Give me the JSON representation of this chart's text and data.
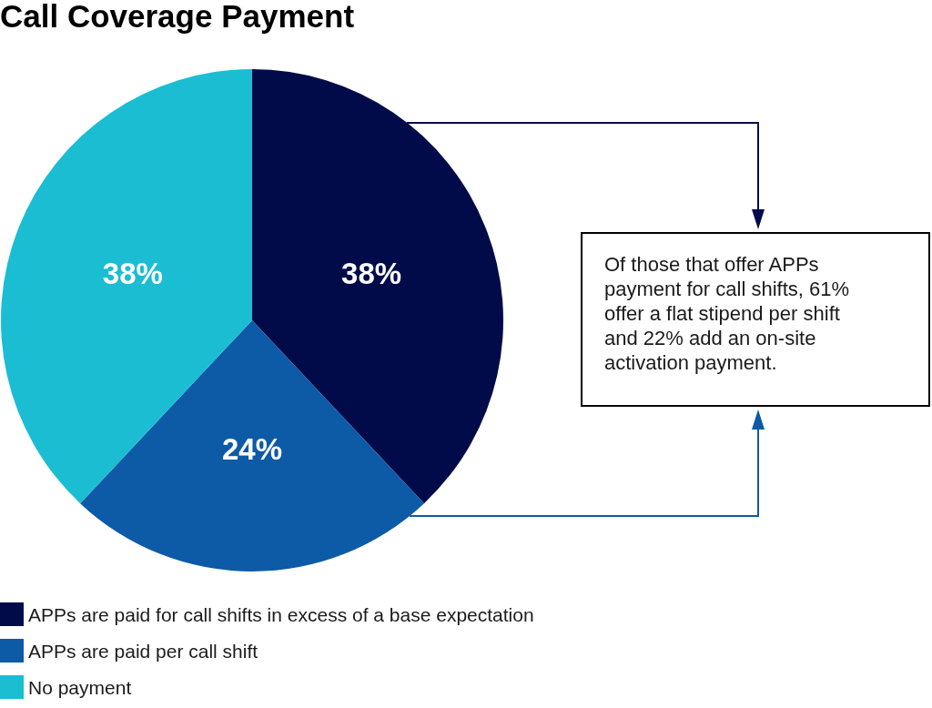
{
  "chart_data": {
    "type": "pie",
    "title": "Call Coverage Payment",
    "categories": [
      "APPs are paid for call shifts in excess of a base expectation",
      "APPs are paid per call shift",
      "No payment"
    ],
    "values": [
      38,
      24,
      38
    ],
    "colors": [
      "#020b4a",
      "#0d5aa7",
      "#1bbdd3"
    ],
    "value_labels": [
      "38%",
      "24%",
      "38%"
    ],
    "legend": "bottom left",
    "annotations": [
      "Of those that offer APPs payment for call shifts, 61% offer a flat stipend per shift and 22% add an on-site activation payment."
    ]
  }
}
